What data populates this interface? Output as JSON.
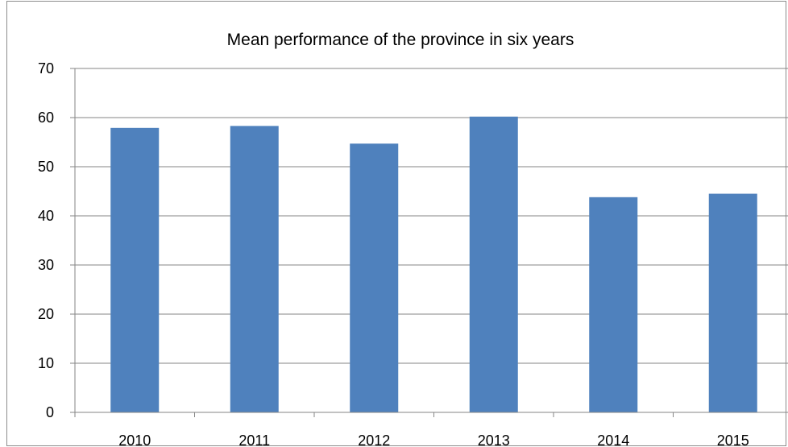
{
  "chart_data": {
    "type": "bar",
    "title": "Mean performance of the province in six years",
    "categories": [
      "2010",
      "2011",
      "2012",
      "2013",
      "2014",
      "2015"
    ],
    "values": [
      57.9,
      58.3,
      54.7,
      60.2,
      43.8,
      44.5
    ],
    "ylim": [
      0,
      70
    ],
    "yticks": [
      "0",
      "10",
      "20",
      "30",
      "40",
      "50",
      "60",
      "70"
    ],
    "xlabel": "",
    "ylabel": "",
    "grid": true,
    "legend": "none",
    "bar_color": "#4f81bd",
    "grid_color": "#868686"
  }
}
